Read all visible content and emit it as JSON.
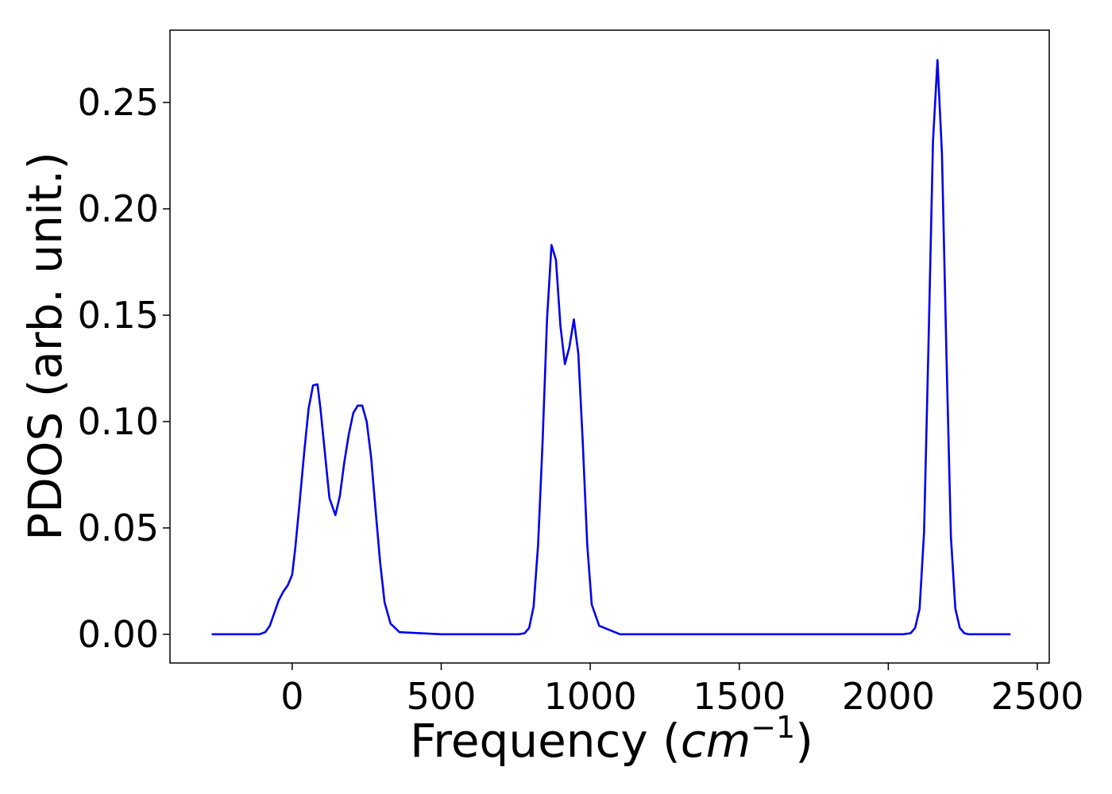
{
  "chart_data": {
    "type": "line",
    "title": "",
    "xlabel": {
      "prefix": "Frequency (",
      "var": "cm",
      "exp": "−1",
      "suffix": ")"
    },
    "ylabel": "PDOS (arb. unit.)",
    "xlim": [
      -410,
      2540
    ],
    "ylim": [
      -0.0135,
      0.284
    ],
    "xticks": [
      0,
      500,
      1000,
      1500,
      2000,
      2500
    ],
    "xtick_labels": [
      "0",
      "500",
      "1000",
      "1500",
      "2000",
      "2500"
    ],
    "yticks": [
      0.0,
      0.05,
      0.1,
      0.15,
      0.2,
      0.25
    ],
    "ytick_labels": [
      "0.00",
      "0.05",
      "0.10",
      "0.15",
      "0.20",
      "0.25"
    ],
    "grid": false,
    "legend": false,
    "series": [
      {
        "color": "#0000ee",
        "x": [
          -270,
          -200,
          -150,
          -110,
          -90,
          -75,
          -60,
          -45,
          -30,
          -15,
          0,
          10,
          25,
          40,
          55,
          70,
          85,
          95,
          110,
          125,
          145,
          160,
          175,
          190,
          205,
          220,
          235,
          250,
          265,
          280,
          295,
          310,
          330,
          360,
          500,
          650,
          760,
          780,
          795,
          810,
          825,
          840,
          855,
          870,
          885,
          900,
          915,
          930,
          945,
          960,
          975,
          990,
          1005,
          1030,
          1100,
          1500,
          1900,
          2050,
          2075,
          2090,
          2105,
          2120,
          2135,
          2150,
          2165,
          2180,
          2195,
          2210,
          2225,
          2240,
          2255,
          2270,
          2300,
          2350,
          2410
        ],
        "y": [
          0.0,
          0.0,
          0.0,
          0.0,
          0.001,
          0.004,
          0.01,
          0.016,
          0.02,
          0.023,
          0.028,
          0.04,
          0.062,
          0.085,
          0.106,
          0.117,
          0.1175,
          0.106,
          0.085,
          0.064,
          0.056,
          0.065,
          0.081,
          0.094,
          0.104,
          0.1075,
          0.1075,
          0.1,
          0.083,
          0.058,
          0.034,
          0.015,
          0.005,
          0.001,
          0.0,
          0.0,
          0.0,
          0.0005,
          0.003,
          0.013,
          0.042,
          0.09,
          0.148,
          0.183,
          0.176,
          0.145,
          0.127,
          0.135,
          0.148,
          0.132,
          0.09,
          0.042,
          0.014,
          0.004,
          0.0,
          0.0,
          0.0,
          0.0,
          0.0005,
          0.003,
          0.012,
          0.048,
          0.137,
          0.232,
          0.27,
          0.226,
          0.132,
          0.046,
          0.012,
          0.003,
          0.0005,
          0.0,
          0.0,
          0.0,
          0.0
        ]
      }
    ]
  }
}
